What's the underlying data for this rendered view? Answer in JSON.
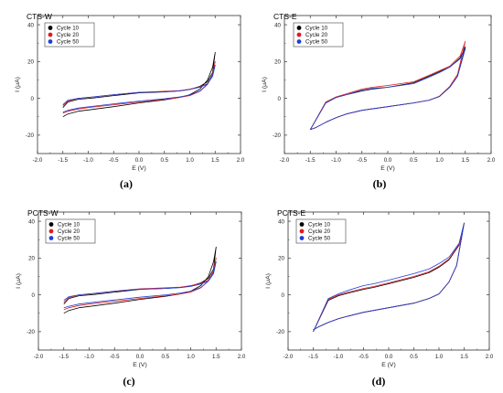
{
  "chart_data": [
    {
      "type": "line",
      "title": "CTS-W",
      "caption": "(a)",
      "xlabel": "E (V)",
      "ylabel": "I (μA)",
      "xlim": [
        -2.0,
        2.0
      ],
      "ylim": [
        -30,
        45
      ],
      "x_ticks": [
        "-2.0",
        "-1.5",
        "-1.0",
        "-0.5",
        "0.0",
        "0.5",
        "1.0",
        "1.5",
        "2.0"
      ],
      "y_ticks": [
        "-20",
        "0",
        "20",
        "40"
      ],
      "legend": "top-left",
      "series": [
        {
          "name": "Cycle 10",
          "color": "#000000",
          "x": [
            -1.5,
            -1.4,
            -1.2,
            -1.0,
            -0.5,
            0.0,
            0.5,
            0.8,
            1.0,
            1.2,
            1.35,
            1.45,
            1.5,
            1.45,
            1.35,
            1.2,
            1.0,
            0.8,
            0.5,
            0.0,
            -0.5,
            -0.9,
            -1.2,
            -1.4,
            -1.5
          ],
          "y": [
            -10.0,
            -8.5,
            -7.0,
            -6.3,
            -4.5,
            -2.5,
            -0.8,
            0.5,
            2.0,
            5.0,
            10.0,
            17.0,
            25.0,
            14.0,
            9.0,
            6.5,
            4.8,
            4.0,
            3.5,
            3.0,
            1.5,
            0.2,
            -0.5,
            -2.0,
            -5.0
          ]
        },
        {
          "name": "Cycle 20",
          "color": "#e41a1c",
          "x": [
            -1.5,
            -1.4,
            -1.2,
            -1.0,
            -0.5,
            0.0,
            0.5,
            0.8,
            1.0,
            1.2,
            1.35,
            1.45,
            1.5,
            1.45,
            1.35,
            1.2,
            1.0,
            0.8,
            0.5,
            0.0,
            -0.5,
            -0.9,
            -1.2,
            -1.4,
            -1.5
          ],
          "y": [
            -8.0,
            -7.0,
            -5.8,
            -5.0,
            -3.5,
            -2.0,
            -0.5,
            0.5,
            1.5,
            3.8,
            7.5,
            13.0,
            20.0,
            12.5,
            8.0,
            6.2,
            5.0,
            4.2,
            3.8,
            3.3,
            2.0,
            0.8,
            0.0,
            -1.5,
            -4.0
          ]
        },
        {
          "name": "Cycle 50",
          "color": "#1f3fd6",
          "x": [
            -1.5,
            -1.4,
            -1.2,
            -1.0,
            -0.5,
            0.0,
            0.5,
            0.8,
            1.0,
            1.2,
            1.35,
            1.45,
            1.5,
            1.45,
            1.35,
            1.2,
            1.0,
            0.8,
            0.5,
            0.0,
            -0.5,
            -0.9,
            -1.2,
            -1.4,
            -1.5
          ],
          "y": [
            -7.5,
            -6.5,
            -5.3,
            -4.6,
            -3.0,
            -1.5,
            -0.2,
            0.8,
            1.8,
            4.0,
            7.8,
            12.5,
            18.0,
            12.0,
            7.8,
            6.0,
            4.8,
            4.0,
            3.6,
            3.2,
            2.0,
            0.8,
            0.0,
            -1.0,
            -3.5
          ]
        }
      ]
    },
    {
      "type": "line",
      "title": "CTS-E",
      "caption": "(b)",
      "xlabel": "E (V)",
      "ylabel": "I (μA)",
      "xlim": [
        -2.0,
        2.0
      ],
      "ylim": [
        -30,
        45
      ],
      "x_ticks": [
        "-2.0",
        "-1.5",
        "-1.0",
        "-0.5",
        "0.0",
        "0.5",
        "1.0",
        "1.5",
        "2.0"
      ],
      "y_ticks": [
        "-20",
        "0",
        "20",
        "40"
      ],
      "legend": "top-right",
      "series": [
        {
          "name": "Cycle 10",
          "color": "#000000",
          "x": [
            -1.5,
            -1.4,
            -1.2,
            -1.0,
            -0.8,
            -0.5,
            0.0,
            0.5,
            0.8,
            1.0,
            1.2,
            1.35,
            1.5,
            1.4,
            1.2,
            1.0,
            0.8,
            0.5,
            0.0,
            -0.3,
            -0.5,
            -0.8,
            -1.0,
            -1.2,
            -1.5
          ],
          "y": [
            -17.0,
            -16.0,
            -13.0,
            -10.5,
            -8.5,
            -6.5,
            -4.5,
            -2.5,
            -1.0,
            1.0,
            6.0,
            12.0,
            28.0,
            22.0,
            17.0,
            14.5,
            12.0,
            8.5,
            6.0,
            5.0,
            4.0,
            2.0,
            0.5,
            -2.5,
            -17.0
          ]
        },
        {
          "name": "Cycle 20",
          "color": "#e41a1c",
          "x": [
            -1.5,
            -1.4,
            -1.2,
            -1.0,
            -0.8,
            -0.5,
            0.0,
            0.5,
            0.8,
            1.0,
            1.2,
            1.35,
            1.5,
            1.4,
            1.2,
            1.0,
            0.8,
            0.5,
            0.0,
            -0.3,
            -0.5,
            -0.8,
            -1.0,
            -1.2,
            -1.5
          ],
          "y": [
            -17.0,
            -16.0,
            -13.0,
            -10.5,
            -8.5,
            -6.5,
            -4.5,
            -2.5,
            -1.0,
            1.2,
            6.5,
            13.0,
            31.0,
            23.0,
            17.5,
            15.0,
            12.5,
            9.0,
            7.0,
            6.0,
            5.0,
            2.5,
            0.8,
            -2.0,
            -17.0
          ]
        },
        {
          "name": "Cycle 50",
          "color": "#1f3fd6",
          "x": [
            -1.5,
            -1.4,
            -1.2,
            -1.0,
            -0.8,
            -0.5,
            0.0,
            0.5,
            0.8,
            1.0,
            1.2,
            1.35,
            1.5,
            1.4,
            1.2,
            1.0,
            0.8,
            0.5,
            0.0,
            -0.3,
            -0.5,
            -0.8,
            -1.0,
            -1.2,
            -1.5
          ],
          "y": [
            -17.0,
            -16.0,
            -13.0,
            -10.5,
            -8.5,
            -6.5,
            -4.5,
            -2.5,
            -1.0,
            1.0,
            6.0,
            12.0,
            27.0,
            21.5,
            17.0,
            14.0,
            11.5,
            8.0,
            6.0,
            5.5,
            4.5,
            2.0,
            0.5,
            -2.5,
            -17.0
          ]
        }
      ]
    },
    {
      "type": "line",
      "title": "PCTS-W",
      "caption": "(c)",
      "xlabel": "E (V)",
      "ylabel": "I (μA)",
      "xlim": [
        -2.0,
        2.0
      ],
      "ylim": [
        -30,
        45
      ],
      "x_ticks": [
        "-2.0",
        "-1.5",
        "-1.0",
        "-0.5",
        "0.0",
        "0.5",
        "1.0",
        "1.5",
        "2.0"
      ],
      "y_ticks": [
        "-20",
        "0",
        "20",
        "40"
      ],
      "legend": "top-left",
      "series": [
        {
          "name": "Cycle 10",
          "color": "#000000",
          "x": [
            -1.5,
            -1.4,
            -1.2,
            -1.0,
            -0.5,
            0.0,
            0.5,
            0.8,
            1.0,
            1.2,
            1.35,
            1.45,
            1.5,
            1.45,
            1.35,
            1.2,
            1.0,
            0.8,
            0.5,
            0.0,
            -0.5,
            -0.9,
            -1.2,
            -1.4,
            -1.5
          ],
          "y": [
            -10.0,
            -8.5,
            -7.0,
            -6.3,
            -4.5,
            -2.5,
            -0.8,
            0.5,
            2.0,
            5.0,
            10.0,
            18.0,
            26.0,
            14.0,
            9.0,
            6.5,
            4.8,
            4.0,
            3.5,
            3.0,
            1.5,
            0.2,
            -0.5,
            -2.0,
            -5.0
          ]
        },
        {
          "name": "Cycle 20",
          "color": "#e41a1c",
          "x": [
            -1.5,
            -1.4,
            -1.2,
            -1.0,
            -0.5,
            0.0,
            0.5,
            0.8,
            1.0,
            1.2,
            1.35,
            1.45,
            1.5,
            1.45,
            1.35,
            1.2,
            1.0,
            0.8,
            0.5,
            0.0,
            -0.5,
            -0.9,
            -1.2,
            -1.4,
            -1.5
          ],
          "y": [
            -8.0,
            -7.0,
            -5.8,
            -5.0,
            -3.5,
            -2.0,
            -0.5,
            0.5,
            1.5,
            3.8,
            7.5,
            13.0,
            20.0,
            12.5,
            8.0,
            6.2,
            5.0,
            4.2,
            3.8,
            3.3,
            2.0,
            0.8,
            0.0,
            -1.5,
            -4.0
          ]
        },
        {
          "name": "Cycle 50",
          "color": "#1f3fd6",
          "x": [
            -1.5,
            -1.4,
            -1.2,
            -1.0,
            -0.5,
            0.0,
            0.5,
            0.8,
            1.0,
            1.2,
            1.35,
            1.45,
            1.5,
            1.45,
            1.35,
            1.2,
            1.0,
            0.8,
            0.5,
            0.0,
            -0.5,
            -0.9,
            -1.2,
            -1.4,
            -1.5
          ],
          "y": [
            -7.0,
            -6.2,
            -5.0,
            -4.3,
            -2.8,
            -1.3,
            0.0,
            1.0,
            2.0,
            4.0,
            7.5,
            12.0,
            18.0,
            11.5,
            7.5,
            5.8,
            4.6,
            3.9,
            3.5,
            3.1,
            2.0,
            0.8,
            0.0,
            -1.0,
            -3.0
          ]
        }
      ]
    },
    {
      "type": "line",
      "title": "PCTS-E",
      "caption": "(d)",
      "xlabel": "E (V)",
      "ylabel": "I (μA)",
      "xlim": [
        -2.0,
        2.0
      ],
      "ylim": [
        -30,
        45
      ],
      "x_ticks": [
        "-2.0",
        "-1.5",
        "-1.0",
        "-0.5",
        "0.0",
        "0.5",
        "1.0",
        "1.5",
        "2.0"
      ],
      "y_ticks": [
        "-20",
        "0",
        "20",
        "40"
      ],
      "legend": "top-left",
      "series": [
        {
          "name": "Cycle 10",
          "color": "#000000",
          "x": [
            -1.5,
            -1.4,
            -1.2,
            -1.0,
            -0.8,
            -0.5,
            0.0,
            0.5,
            0.8,
            1.0,
            1.2,
            1.35,
            1.5,
            1.4,
            1.2,
            1.0,
            0.8,
            0.5,
            0.0,
            -0.3,
            -0.5,
            -0.8,
            -1.0,
            -1.2,
            -1.5
          ],
          "y": [
            -19.0,
            -17.5,
            -15.0,
            -13.0,
            -11.5,
            -9.5,
            -7.0,
            -4.5,
            -2.0,
            0.5,
            7.0,
            16.0,
            39.0,
            27.0,
            19.0,
            15.0,
            12.0,
            9.5,
            6.0,
            4.0,
            3.0,
            1.0,
            -0.5,
            -3.0,
            -20.0
          ]
        },
        {
          "name": "Cycle 20",
          "color": "#e41a1c",
          "x": [
            -1.5,
            -1.4,
            -1.2,
            -1.0,
            -0.8,
            -0.5,
            0.0,
            0.5,
            0.8,
            1.0,
            1.2,
            1.35,
            1.5,
            1.4,
            1.2,
            1.0,
            0.8,
            0.5,
            0.0,
            -0.3,
            -0.5,
            -0.8,
            -1.0,
            -1.2,
            -1.5
          ],
          "y": [
            -19.0,
            -17.5,
            -15.0,
            -13.0,
            -11.5,
            -9.5,
            -7.0,
            -4.5,
            -2.0,
            0.5,
            7.0,
            16.0,
            39.0,
            27.5,
            19.5,
            15.5,
            12.5,
            10.0,
            6.5,
            4.5,
            3.5,
            1.5,
            0.0,
            -2.5,
            -20.0
          ]
        },
        {
          "name": "Cycle 50",
          "color": "#1f3fd6",
          "x": [
            -1.5,
            -1.4,
            -1.2,
            -1.0,
            -0.8,
            -0.5,
            0.0,
            0.5,
            0.8,
            1.0,
            1.2,
            1.35,
            1.5,
            1.4,
            1.2,
            1.0,
            0.8,
            0.5,
            0.0,
            -0.3,
            -0.5,
            -0.8,
            -1.0,
            -1.2,
            -1.5
          ],
          "y": [
            -19.0,
            -17.5,
            -15.0,
            -13.0,
            -11.5,
            -9.5,
            -7.0,
            -4.5,
            -2.0,
            0.5,
            7.0,
            16.0,
            39.0,
            28.0,
            20.5,
            17.0,
            14.0,
            11.5,
            8.0,
            6.0,
            5.0,
            2.5,
            0.5,
            -2.0,
            -20.0
          ]
        }
      ]
    }
  ]
}
